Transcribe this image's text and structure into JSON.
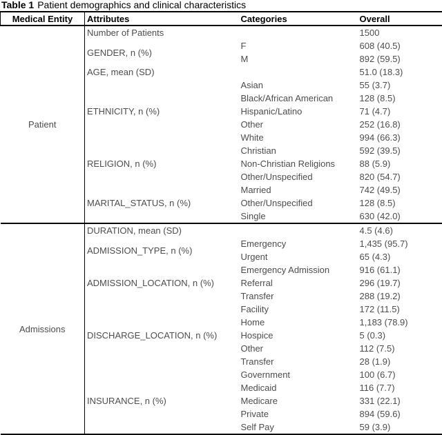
{
  "title": {
    "label": "Table 1",
    "text": "Patient demographics and clinical characteristics"
  },
  "table": {
    "columns": [
      "Medical Entity",
      "Attributes",
      "Categories",
      "Overall"
    ],
    "sections": [
      {
        "entity": "Patient",
        "groups": [
          {
            "attribute": "Number of Patients",
            "rows": [
              {
                "category": "",
                "overall": "1500"
              }
            ]
          },
          {
            "attribute": "GENDER, n (%)",
            "rows": [
              {
                "category": "F",
                "overall": "608 (40.5)"
              },
              {
                "category": "M",
                "overall": "892 (59.5)"
              }
            ]
          },
          {
            "attribute": "AGE, mean (SD)",
            "rows": [
              {
                "category": "",
                "overall": "51.0 (18.3)"
              }
            ]
          },
          {
            "attribute": "ETHNICITY, n (%)",
            "rows": [
              {
                "category": "Asian",
                "overall": "55 (3.7)"
              },
              {
                "category": "Black/African American",
                "overall": "128 (8.5)"
              },
              {
                "category": "Hispanic/Latino",
                "overall": "71 (4.7)"
              },
              {
                "category": "Other",
                "overall": "252 (16.8)"
              },
              {
                "category": "White",
                "overall": "994 (66.3)"
              }
            ]
          },
          {
            "attribute": "RELIGION, n (%)",
            "rows": [
              {
                "category": "Christian",
                "overall": "592 (39.5)"
              },
              {
                "category": "Non-Christian Religions",
                "overall": "88 (5.9)"
              },
              {
                "category": "Other/Unspecified",
                "overall": "820 (54.7)"
              }
            ]
          },
          {
            "attribute": "MARITAL_STATUS, n (%)",
            "rows": [
              {
                "category": "Married",
                "overall": "742 (49.5)"
              },
              {
                "category": "Other/Unspecified",
                "overall": "128 (8.5)"
              },
              {
                "category": "Single",
                "overall": "630 (42.0)"
              }
            ]
          }
        ]
      },
      {
        "entity": "Admissions",
        "groups": [
          {
            "attribute": "DURATION, mean (SD)",
            "rows": [
              {
                "category": "",
                "overall": "4.5 (4.6)"
              }
            ]
          },
          {
            "attribute": "ADMISSION_TYPE, n (%)",
            "rows": [
              {
                "category": "Emergency",
                "overall": "1,435 (95.7)"
              },
              {
                "category": "Urgent",
                "overall": "65 (4.3)"
              }
            ]
          },
          {
            "attribute": "ADMISSION_LOCATION, n (%)",
            "rows": [
              {
                "category": "Emergency Admission",
                "overall": "916 (61.1)"
              },
              {
                "category": "Referral",
                "overall": "296 (19.7)"
              },
              {
                "category": "Transfer",
                "overall": "288 (19.2)"
              }
            ]
          },
          {
            "attribute": "DISCHARGE_LOCATION, n (%)",
            "rows": [
              {
                "category": "Facility",
                "overall": "172 (11.5)"
              },
              {
                "category": "Home",
                "overall": "1,183 (78.9)"
              },
              {
                "category": "Hospice",
                "overall": "5 (0.3)"
              },
              {
                "category": "Other",
                "overall": "112 (7.5)"
              },
              {
                "category": "Transfer",
                "overall": "28 (1.9)"
              }
            ]
          },
          {
            "attribute": "INSURANCE, n (%)",
            "rows": [
              {
                "category": "Government",
                "overall": "100 (6.7)"
              },
              {
                "category": "Medicaid",
                "overall": "116 (7.7)"
              },
              {
                "category": "Medicare",
                "overall": "331 (22.1)"
              },
              {
                "category": "Private",
                "overall": "894 (59.6)"
              },
              {
                "category": "Self Pay",
                "overall": "59 (3.9)"
              }
            ]
          }
        ]
      }
    ]
  },
  "colors": {
    "border": "#000000",
    "header_text": "#000000",
    "body_text": "#4d4d4d",
    "background": "#ffffff"
  }
}
